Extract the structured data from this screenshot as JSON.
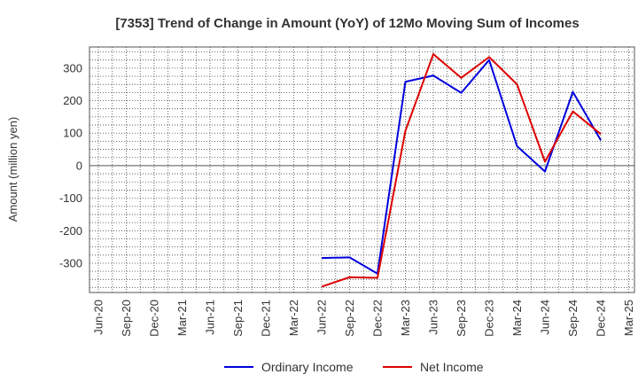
{
  "chart_data": {
    "type": "line",
    "title": "[7353]  Trend of Change in Amount (YoY) of 12Mo Moving Sum of Incomes",
    "ylabel": "Amount (million yen)",
    "xlabel": "",
    "ylim": [
      -390,
      365
    ],
    "yticks": [
      300,
      200,
      100,
      0,
      -100,
      -200,
      -300
    ],
    "ytick_labels": [
      "300",
      "200",
      "100",
      "0",
      "-100",
      "-200",
      "-300"
    ],
    "categories": [
      "Jun-20",
      "Sep-20",
      "Dec-20",
      "Mar-21",
      "Jun-21",
      "Sep-21",
      "Dec-21",
      "Mar-22",
      "Jun-22",
      "Sep-22",
      "Dec-22",
      "Mar-23",
      "Jun-23",
      "Sep-23",
      "Dec-23",
      "Mar-24",
      "Jun-24",
      "Sep-24",
      "Dec-24",
      "Mar-25"
    ],
    "grid": true,
    "legend_position": "bottom",
    "series": [
      {
        "name": "Ordinary Income",
        "color": "#0000dd",
        "values": [
          null,
          null,
          null,
          null,
          null,
          null,
          null,
          null,
          -284,
          -282,
          -332,
          258,
          277,
          224,
          325,
          60,
          -18,
          227,
          78,
          null
        ]
      },
      {
        "name": "Net Income",
        "color": "#dd0000",
        "values": [
          null,
          null,
          null,
          null,
          null,
          null,
          null,
          null,
          -372,
          -343,
          -345,
          107,
          343,
          270,
          334,
          250,
          12,
          167,
          97,
          null
        ]
      }
    ]
  }
}
